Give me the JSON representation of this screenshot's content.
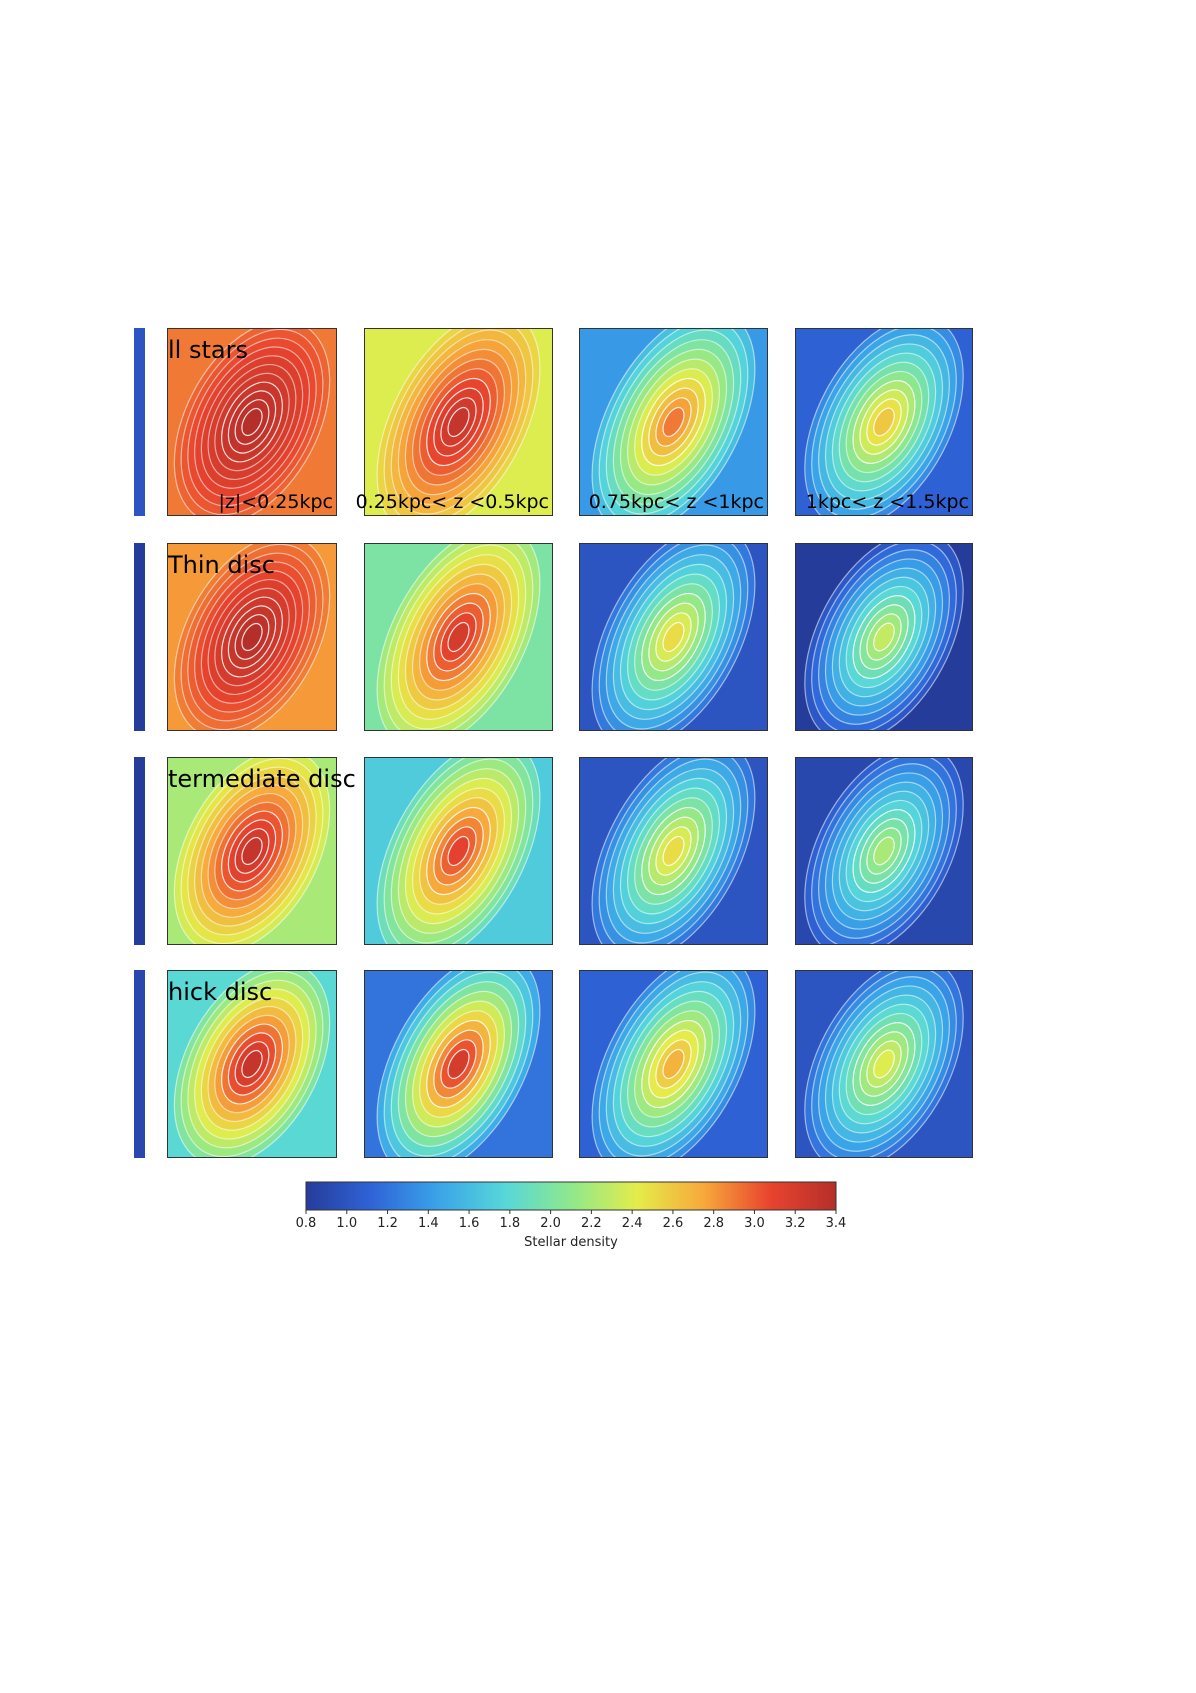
{
  "chart_data": {
    "type": "heatmap",
    "rows": [
      {
        "name": "All stars",
        "label": "ll stars"
      },
      {
        "name": "Thin disc",
        "label": "Thin disc"
      },
      {
        "name": "Intermediate disc",
        "label": "termediate disc"
      },
      {
        "name": "Thick disc",
        "label": "hick disc"
      }
    ],
    "columns": [
      {
        "label": "|z|<0.25kpc"
      },
      {
        "label": "0.25kpc< z <0.5kpc"
      },
      {
        "label": "0.75kpc< z <1kpc"
      },
      {
        "label": "1kpc< z <1.5kpc"
      }
    ],
    "peak_density": [
      [
        3.4,
        3.3,
        2.9,
        2.6
      ],
      [
        3.4,
        3.2,
        2.5,
        2.3
      ],
      [
        3.3,
        3.1,
        2.5,
        2.2
      ],
      [
        3.3,
        3.2,
        2.7,
        2.4
      ]
    ],
    "background_density": [
      [
        2.9,
        2.4,
        1.4,
        1.1
      ],
      [
        2.8,
        2.0,
        1.0,
        0.8
      ],
      [
        2.2,
        1.7,
        1.0,
        0.9
      ],
      [
        1.8,
        1.2,
        1.1,
        1.0
      ]
    ],
    "colorbar": {
      "label": "Stellar density",
      "min": 0.8,
      "max": 3.4,
      "ticks": [
        "0.8",
        "1.0",
        "1.2",
        "1.4",
        "1.6",
        "1.8",
        "2.0",
        "2.2",
        "2.4",
        "2.6",
        "2.8",
        "3.0",
        "3.2",
        "3.4"
      ],
      "colormap": [
        "#263c9b",
        "#2f64d8",
        "#3aa4e8",
        "#56d7d9",
        "#8fe88c",
        "#e4ec4a",
        "#f7a93b",
        "#e8442e",
        "#b52f2a"
      ]
    }
  }
}
